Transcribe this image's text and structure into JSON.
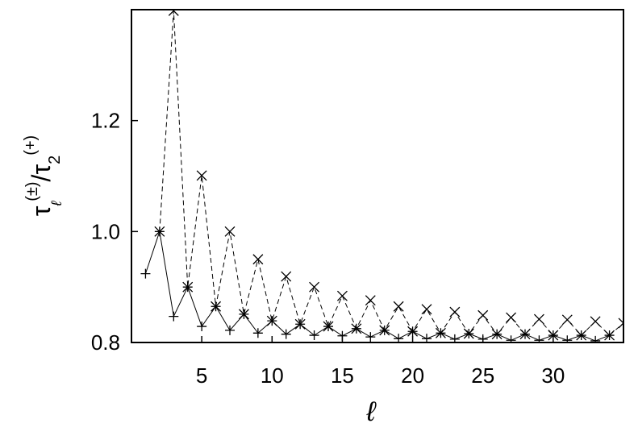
{
  "chart_data": {
    "type": "line",
    "ylabel": [
      "τ",
      "ℓ",
      "(±)",
      "/τ",
      "2",
      "(+)"
    ],
    "xlabel": "ℓ",
    "xlim": [
      0,
      35
    ],
    "ylim": [
      0.8,
      1.4
    ],
    "xticks": [
      5,
      10,
      15,
      20,
      25,
      30
    ],
    "yticks": [
      {
        "value": 0.8,
        "label": "0.8"
      },
      {
        "value": 1.0,
        "label": "1.0"
      },
      {
        "value": 1.2,
        "label": "1.2"
      }
    ],
    "grid": false,
    "series": [
      {
        "color": "#000000",
        "marker": "plus",
        "dash": false,
        "x": [
          1,
          2,
          3,
          4,
          5,
          6,
          7,
          8,
          9,
          10,
          11,
          12,
          13,
          14,
          15,
          16,
          17,
          18,
          19,
          20,
          21,
          22,
          23,
          24,
          25,
          26,
          27,
          28,
          29,
          30,
          31,
          32,
          33,
          34
        ],
        "values": [
          0.924,
          1.0,
          0.847,
          0.9,
          0.829,
          0.865,
          0.822,
          0.851,
          0.817,
          0.839,
          0.815,
          0.833,
          0.813,
          0.829,
          0.812,
          0.825,
          0.81,
          0.822,
          0.807,
          0.82,
          0.807,
          0.817,
          0.806,
          0.816,
          0.806,
          0.815,
          0.804,
          0.815,
          0.804,
          0.813,
          0.804,
          0.813,
          0.803,
          0.813
        ]
      },
      {
        "color": "#000000",
        "marker": "cross",
        "dash": true,
        "x": [
          2,
          3,
          4,
          5,
          6,
          7,
          8,
          9,
          10,
          11,
          12,
          13,
          14,
          15,
          16,
          17,
          18,
          19,
          20,
          21,
          22,
          23,
          24,
          25,
          26,
          27,
          28,
          29,
          30,
          31,
          32,
          33,
          34,
          35
        ],
        "values": [
          1.0,
          1.398,
          0.9,
          1.101,
          0.865,
          1.0,
          0.851,
          0.95,
          0.839,
          0.919,
          0.833,
          0.9,
          0.829,
          0.884,
          0.825,
          0.876,
          0.822,
          0.865,
          0.82,
          0.86,
          0.817,
          0.855,
          0.816,
          0.849,
          0.815,
          0.845,
          0.815,
          0.842,
          0.813,
          0.841,
          0.813,
          0.838,
          0.813,
          0.835
        ]
      }
    ]
  }
}
